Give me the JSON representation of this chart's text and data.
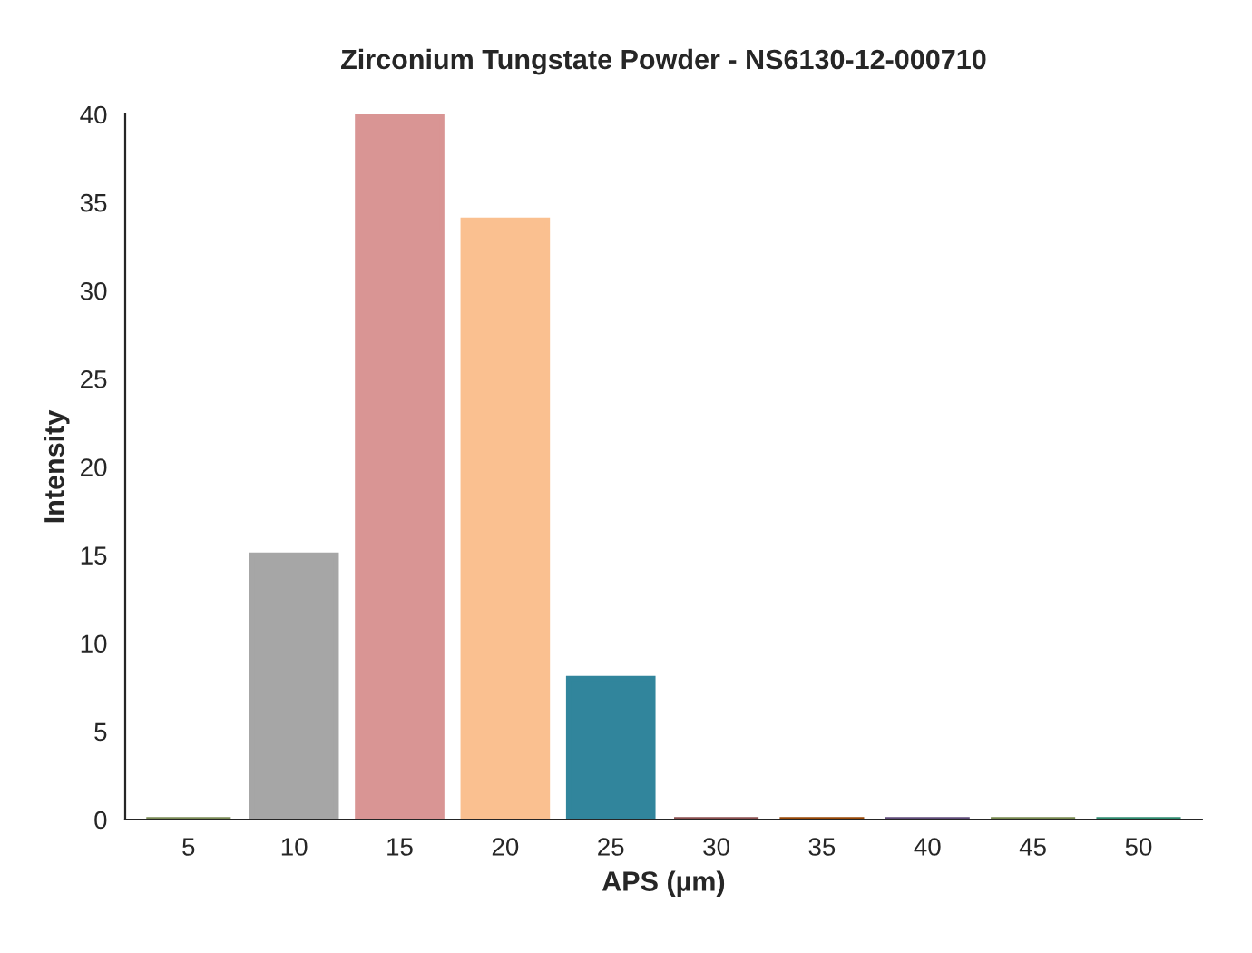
{
  "chart_data": {
    "type": "bar",
    "title": "Zirconium Tungstate Powder - NS6130-12-000710",
    "xlabel": "APS (µm)",
    "ylabel": "Intensity",
    "categories": [
      "5",
      "10",
      "15",
      "20",
      "25",
      "30",
      "35",
      "40",
      "45",
      "50"
    ],
    "values": [
      0,
      15,
      40,
      34,
      8,
      0,
      0,
      0,
      0,
      0
    ],
    "colors": [
      "#7a8a55",
      "#a6a6a6",
      "#d99594",
      "#fac090",
      "#31859c",
      "#8b4f4f",
      "#984807",
      "#5f4b7a",
      "#77884e",
      "#2e8b6f"
    ],
    "ylim": [
      0,
      40
    ],
    "yticks": [
      0,
      5,
      10,
      15,
      20,
      25,
      30,
      35,
      40
    ],
    "grid": false
  }
}
